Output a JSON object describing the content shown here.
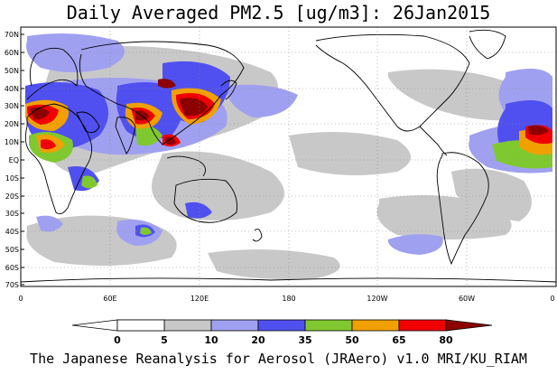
{
  "title": "Daily Averaged PM2.5 [ug/m3]: 26Jan2015",
  "footer": "The Japanese Reanalysis for Aerosol (JRAero) v1.0 MRI/KU_RIAM",
  "lat_labels": [
    "70N",
    "60N",
    "50N",
    "40N",
    "30N",
    "20N",
    "10N",
    "EQ",
    "10S",
    "20S",
    "30S",
    "40S",
    "50S",
    "60S",
    "70S"
  ],
  "lon_labels": [
    "0",
    "60E",
    "120E",
    "180",
    "120W",
    "60W",
    "0"
  ],
  "colorbar": {
    "ticks": [
      "0",
      "5",
      "10",
      "20",
      "35",
      "50",
      "65",
      "80"
    ],
    "colors": [
      "#ffffff",
      "#c8c8c8",
      "#a0a0f0",
      "#5050f0",
      "#80c830",
      "#f0a000",
      "#f00000",
      "#8c0000"
    ]
  }
}
